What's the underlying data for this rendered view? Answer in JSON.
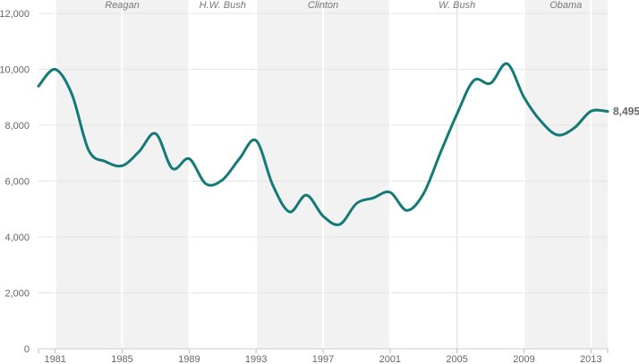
{
  "chart_data": {
    "type": "line",
    "xlim": [
      1980,
      2014
    ],
    "ylim": [
      0,
      12000
    ],
    "y_ticks": [
      0,
      2000,
      4000,
      6000,
      8000,
      10000,
      12000
    ],
    "y_tick_labels": [
      "0",
      "2,000",
      "4,000",
      "6,000",
      "8,000",
      "10,000",
      "12,000"
    ],
    "x_ticks": [
      1981,
      1985,
      1989,
      1993,
      1997,
      2001,
      2005,
      2009,
      2013
    ],
    "x_tick_labels": [
      "1981",
      "1985",
      "1989",
      "1993",
      "1997",
      "2001",
      "2005",
      "2009",
      "2013"
    ],
    "grid": "horizontal",
    "line_color": "#137a77",
    "shade_color": "#f2f2f2",
    "administrations": [
      {
        "name": "Reagan",
        "start": 1981,
        "end": 1989,
        "shaded": true
      },
      {
        "name": "H.W. Bush",
        "start": 1989,
        "end": 1993,
        "shaded": false
      },
      {
        "name": "Clinton",
        "start": 1993,
        "end": 2001,
        "shaded": true
      },
      {
        "name": "W. Bush",
        "start": 2001,
        "end": 2009,
        "shaded": false
      },
      {
        "name": "Obama",
        "start": 2009,
        "end": 2014,
        "shaded": true
      }
    ],
    "x": [
      1980,
      1981,
      1982,
      1983,
      1984,
      1985,
      1986,
      1987,
      1988,
      1989,
      1990,
      1991,
      1992,
      1993,
      1994,
      1995,
      1996,
      1997,
      1998,
      1999,
      2000,
      2001,
      2002,
      2003,
      2004,
      2005,
      2006,
      2007,
      2008,
      2009,
      2010,
      2011,
      2012,
      2013,
      2014
    ],
    "values": [
      9400,
      10000,
      9100,
      7100,
      6700,
      6550,
      7050,
      7700,
      6450,
      6800,
      5900,
      6050,
      6800,
      7450,
      5850,
      4900,
      5500,
      4750,
      4450,
      5200,
      5400,
      5600,
      4950,
      5550,
      7000,
      8400,
      9600,
      9500,
      10200,
      9000,
      8150,
      7650,
      7900,
      8500,
      8495
    ],
    "end_label": "8,495"
  }
}
